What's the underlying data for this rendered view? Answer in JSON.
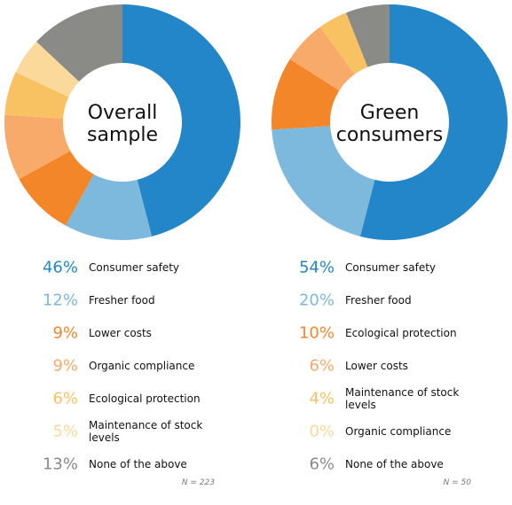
{
  "chart_data": [
    {
      "type": "pie",
      "center_title": [
        "Overall",
        "sample"
      ],
      "n_label": "N = 223",
      "slices": [
        {
          "label": "Consumer safety",
          "value": 46,
          "pct_text": "46%",
          "color": "#2286c8"
        },
        {
          "label": "Fresher food",
          "value": 12,
          "pct_text": "12%",
          "color": "#7db9dd"
        },
        {
          "label": "Lower costs",
          "value": 9,
          "pct_text": "9%",
          "color": "#f4862a"
        },
        {
          "label": "Organic compliance",
          "value": 9,
          "pct_text": "9%",
          "color": "#f8aa6a"
        },
        {
          "label": "Ecological protection",
          "value": 6,
          "pct_text": "6%",
          "color": "#f8c262"
        },
        {
          "label": "Maintenance of stock levels",
          "value": 5,
          "pct_text": "5%",
          "color": "#fad99b"
        },
        {
          "label": "None of the above",
          "value": 13,
          "pct_text": "13%",
          "color": "#8a8a86"
        }
      ]
    },
    {
      "type": "pie",
      "center_title": [
        "Green",
        "consumers"
      ],
      "n_label": "N = 50",
      "slices": [
        {
          "label": "Consumer safety",
          "value": 54,
          "pct_text": "54%",
          "color": "#2286c8"
        },
        {
          "label": "Fresher food",
          "value": 20,
          "pct_text": "20%",
          "color": "#7db9dd"
        },
        {
          "label": "Ecological protection",
          "value": 10,
          "pct_text": "10%",
          "color": "#f4862a"
        },
        {
          "label": "Lower costs",
          "value": 6,
          "pct_text": "6%",
          "color": "#f8aa6a"
        },
        {
          "label": "Maintenance of stock levels",
          "value": 4,
          "pct_text": "4%",
          "color": "#f8c262"
        },
        {
          "label": "Organic compliance",
          "value": 0,
          "pct_text": "0%",
          "color": "#fad99b"
        },
        {
          "label": "None of the above",
          "value": 6,
          "pct_text": "6%",
          "color": "#8a8a86"
        }
      ]
    }
  ]
}
